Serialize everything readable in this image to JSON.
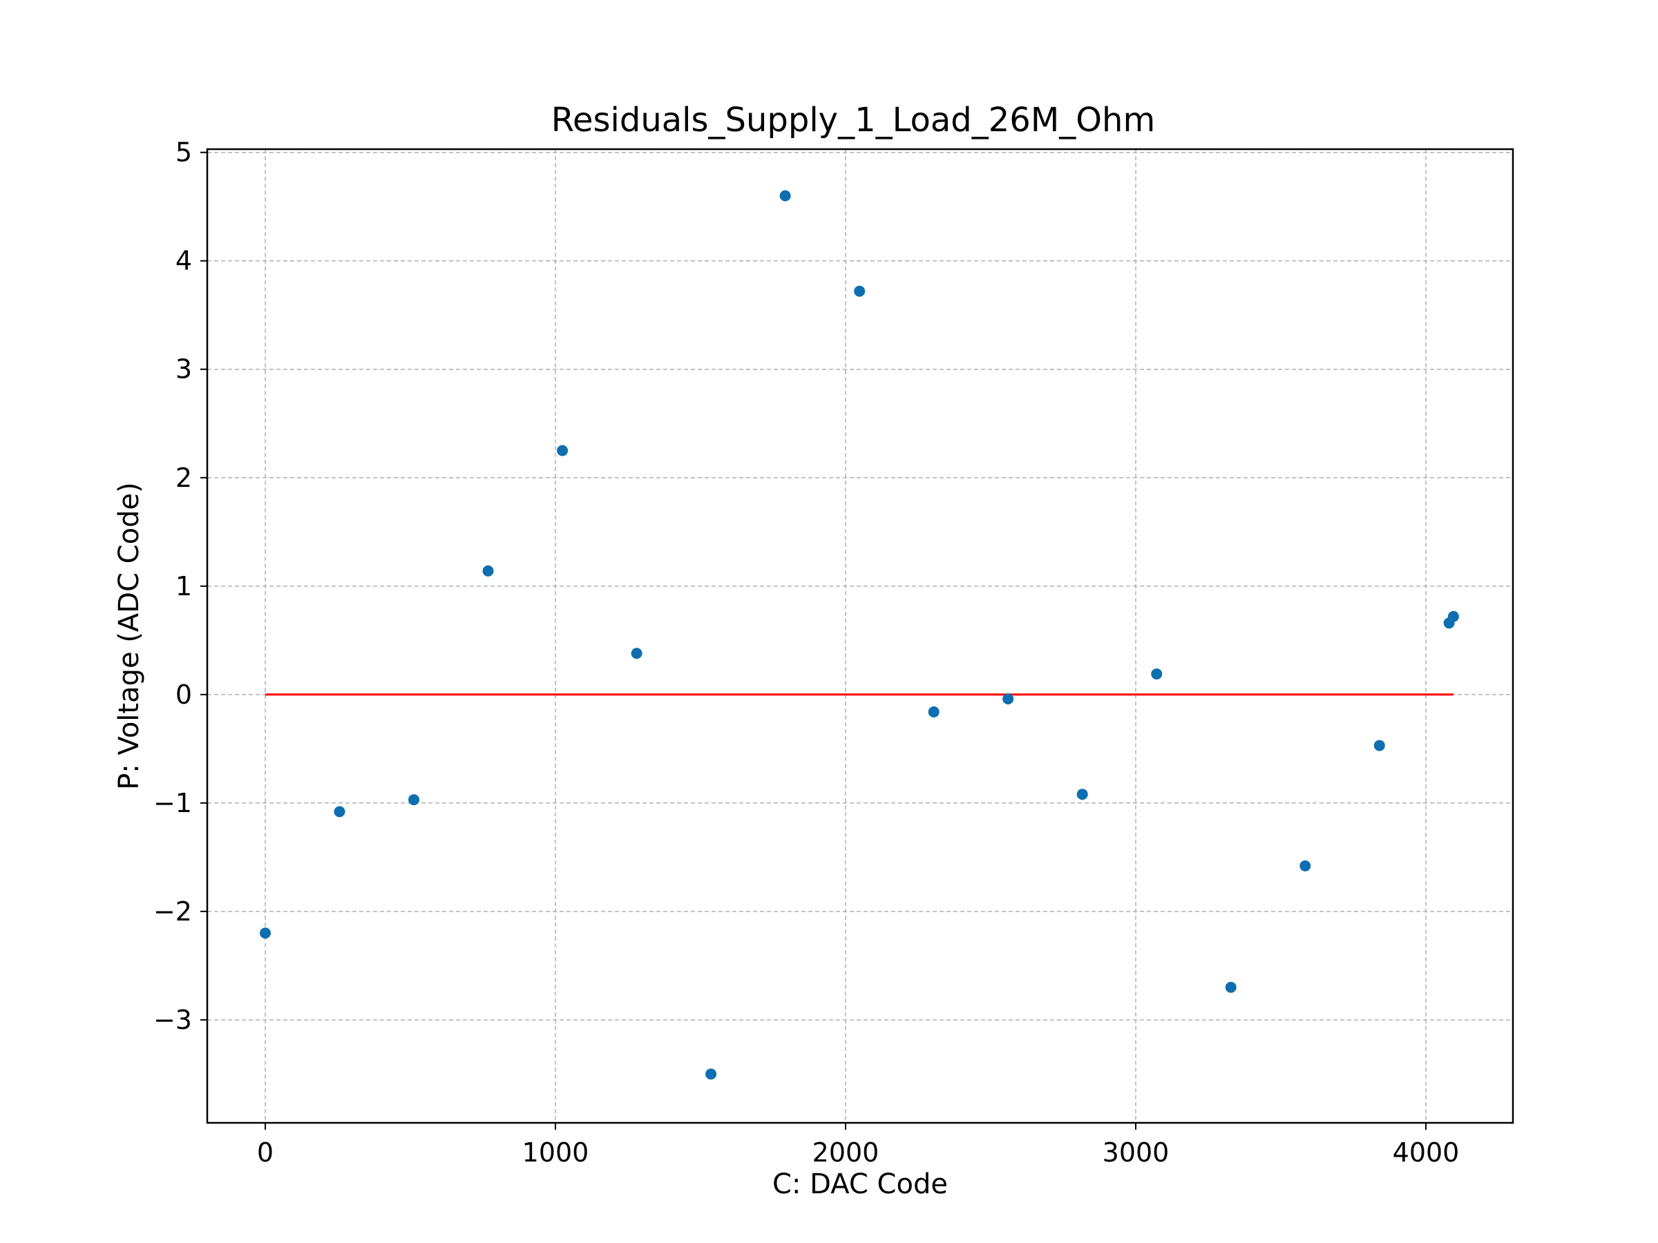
{
  "chart_data": {
    "type": "scatter",
    "title": "Residuals_Supply_1_Load_26M_Ohm",
    "xlabel": "C: DAC Code",
    "ylabel": "P: Voltage (ADC Code)",
    "xlim": [
      -200,
      4300
    ],
    "ylim": [
      -3.95,
      5.03
    ],
    "x_ticks": [
      0,
      1000,
      2000,
      3000,
      4000
    ],
    "x_tick_labels": [
      "0",
      "1000",
      "2000",
      "3000",
      "4000"
    ],
    "y_ticks": [
      -3,
      -2,
      -1,
      0,
      1,
      2,
      3,
      4,
      5
    ],
    "y_tick_labels": [
      "−3",
      "−2",
      "−1",
      "0",
      "1",
      "2",
      "3",
      "4",
      "5"
    ],
    "grid": true,
    "colors": {
      "points": "#0d6fb0",
      "reference_line": "#ff0000",
      "grid": "#b0b0b0"
    },
    "series": [
      {
        "kind": "points",
        "x": [
          0,
          256,
          512,
          768,
          1024,
          1280,
          1536,
          1792,
          2048,
          2304,
          2560,
          2816,
          3072,
          3328,
          3584,
          3840,
          4080,
          4095
        ],
        "y": [
          -2.2,
          -1.08,
          -0.97,
          1.14,
          2.25,
          0.38,
          -3.5,
          4.6,
          3.72,
          -0.16,
          -0.04,
          -0.92,
          0.19,
          -2.7,
          -1.58,
          -0.47,
          0.66,
          0.72
        ]
      },
      {
        "kind": "reference_line",
        "x": [
          0,
          4095
        ],
        "y": [
          0,
          0
        ]
      }
    ]
  }
}
